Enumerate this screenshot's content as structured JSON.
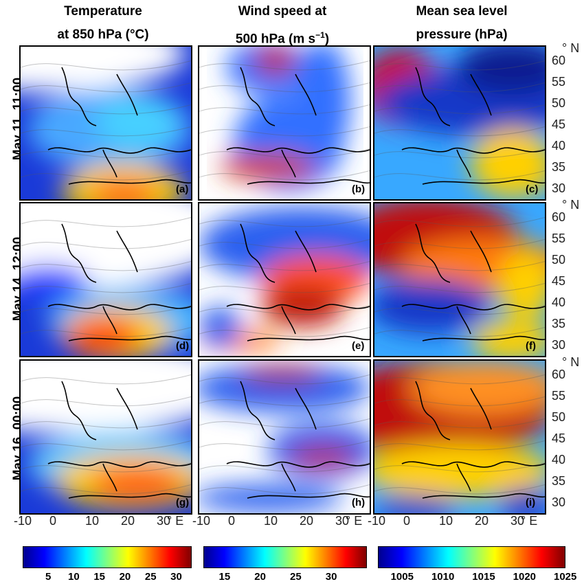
{
  "chart_data": {
    "type": "heatmap",
    "columns": [
      {
        "title_line1": "Temperature",
        "title_line2": "at 850 hPa (°C)"
      },
      {
        "title_line1": "Wind speed at",
        "title_line2": "500 hPa (m s",
        "title_sup": "−1",
        "title_end": ")"
      },
      {
        "title_line1": "Mean sea level",
        "title_line2": "pressure (hPa)"
      }
    ],
    "rows": [
      "May 11, 11:00",
      "May 14, 12:00",
      "May 16, 00:00"
    ],
    "panel_labels": [
      "(a)",
      "(b)",
      "(c)",
      "(d)",
      "(e)",
      "(f)",
      "(g)",
      "(h)",
      "(i)"
    ],
    "x_ticks": [
      "-10",
      "0",
      "10",
      "20",
      "30"
    ],
    "x_unit": "° E",
    "y_ticks": [
      "60",
      "55",
      "50",
      "45",
      "40",
      "35",
      "30"
    ],
    "y_unit": "° N",
    "xlim": [
      -12,
      35
    ],
    "ylim": [
      29,
      63
    ],
    "colorbars": [
      {
        "ticks": [
          "5",
          "10",
          "15",
          "20",
          "25",
          "30"
        ],
        "range": [
          0,
          33
        ]
      },
      {
        "ticks": [
          "15",
          "20",
          "25",
          "30"
        ],
        "range": [
          12,
          35
        ]
      },
      {
        "ticks": [
          "1005",
          "1010",
          "1015",
          "1020",
          "1025"
        ],
        "range": [
          1002,
          1025
        ]
      }
    ],
    "colormap": [
      "#00008f",
      "#0000ff",
      "#0080ff",
      "#00ffff",
      "#80ff80",
      "#ffff00",
      "#ff8000",
      "#ff0000",
      "#800000"
    ]
  }
}
